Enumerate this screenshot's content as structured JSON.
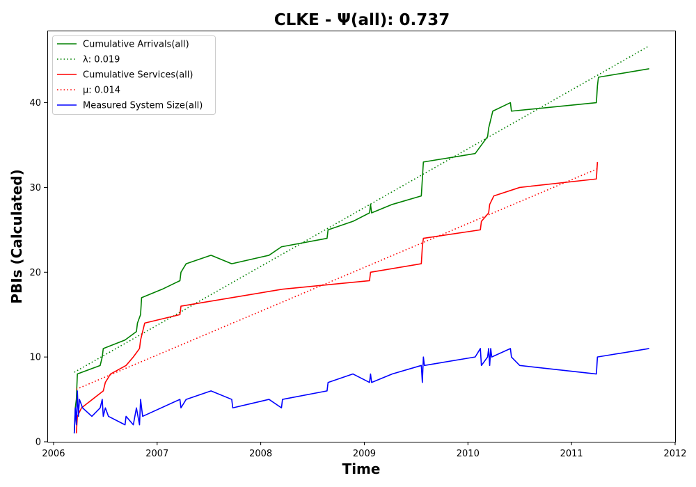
{
  "chart_data": {
    "type": "line",
    "title": "CLKE -  Ψ(all): 0.737",
    "xlabel": "Time",
    "ylabel": "PBIs (Calculated)",
    "xlim": [
      2005.94,
      2012.0
    ],
    "ylim": [
      0,
      48.5
    ],
    "x_ticks": [
      2006,
      2007,
      2008,
      2009,
      2010,
      2011,
      2012
    ],
    "x_tick_labels": [
      "2006",
      "2007",
      "2008",
      "2009",
      "2010",
      "2011",
      "2012"
    ],
    "y_ticks": [
      0,
      10,
      20,
      30,
      40
    ],
    "y_tick_labels": [
      "0",
      "10",
      "20",
      "30",
      "40"
    ],
    "grid": false,
    "legend_position": "top-left",
    "legend": [
      {
        "label": "Cumulative Arrivals(all)",
        "style": "solid",
        "color": "#008000"
      },
      {
        "label": "λ: 0.019",
        "style": "dotted",
        "color": "#008000"
      },
      {
        "label": "Cumulative Services(all)",
        "style": "solid",
        "color": "#ff0000"
      },
      {
        "label": "μ: 0.014",
        "style": "dotted",
        "color": "#ff0000"
      },
      {
        "label": "Measured System Size(all)",
        "style": "solid",
        "color": "#0000ff"
      }
    ],
    "series": [
      {
        "name": "Cumulative Arrivals(all)",
        "style": "solid",
        "color": "#008000",
        "points": [
          [
            2006.2,
            1
          ],
          [
            2006.21,
            4
          ],
          [
            2006.22,
            5
          ],
          [
            2006.23,
            8
          ],
          [
            2006.45,
            9
          ],
          [
            2006.47,
            10
          ],
          [
            2006.48,
            11
          ],
          [
            2006.69,
            12
          ],
          [
            2006.8,
            13
          ],
          [
            2006.81,
            14
          ],
          [
            2006.84,
            15
          ],
          [
            2006.85,
            17
          ],
          [
            2007.05,
            18
          ],
          [
            2007.22,
            19
          ],
          [
            2007.23,
            20
          ],
          [
            2007.28,
            21
          ],
          [
            2007.52,
            22
          ],
          [
            2007.72,
            21
          ],
          [
            2008.08,
            22
          ],
          [
            2008.2,
            23
          ],
          [
            2008.64,
            24
          ],
          [
            2008.65,
            25
          ],
          [
            2008.89,
            26
          ],
          [
            2009.05,
            27
          ],
          [
            2009.06,
            28
          ],
          [
            2009.07,
            27
          ],
          [
            2009.27,
            28
          ],
          [
            2009.55,
            29
          ],
          [
            2009.56,
            31
          ],
          [
            2009.57,
            33
          ],
          [
            2010.07,
            34
          ],
          [
            2010.19,
            36
          ],
          [
            2010.2,
            37
          ],
          [
            2010.24,
            39
          ],
          [
            2010.41,
            40
          ],
          [
            2010.42,
            39
          ],
          [
            2011.24,
            40
          ],
          [
            2011.25,
            42
          ],
          [
            2011.26,
            43
          ],
          [
            2011.75,
            44
          ]
        ]
      },
      {
        "name": "λ: 0.019",
        "style": "dotted",
        "color": "#008000",
        "points": [
          [
            2006.2,
            8.2
          ],
          [
            2011.75,
            46.7
          ]
        ]
      },
      {
        "name": "Cumulative Services(all)",
        "style": "solid",
        "color": "#ff0000",
        "points": [
          [
            2006.22,
            1
          ],
          [
            2006.23,
            3
          ],
          [
            2006.27,
            4
          ],
          [
            2006.48,
            6
          ],
          [
            2006.5,
            7
          ],
          [
            2006.55,
            8
          ],
          [
            2006.7,
            9
          ],
          [
            2006.77,
            10
          ],
          [
            2006.83,
            11
          ],
          [
            2006.84,
            12
          ],
          [
            2006.86,
            13
          ],
          [
            2006.88,
            14
          ],
          [
            2007.22,
            15
          ],
          [
            2007.23,
            16
          ],
          [
            2008.21,
            18
          ],
          [
            2009.05,
            19
          ],
          [
            2009.06,
            20
          ],
          [
            2009.55,
            21
          ],
          [
            2009.56,
            23
          ],
          [
            2009.57,
            24
          ],
          [
            2010.12,
            25
          ],
          [
            2010.13,
            26
          ],
          [
            2010.2,
            27
          ],
          [
            2010.21,
            28
          ],
          [
            2010.25,
            29
          ],
          [
            2010.5,
            30
          ],
          [
            2011.24,
            31
          ],
          [
            2011.25,
            33
          ]
        ]
      },
      {
        "name": "μ: 0.014",
        "style": "dotted",
        "color": "#ff0000",
        "points": [
          [
            2006.22,
            6.2
          ],
          [
            2011.25,
            32.2
          ]
        ]
      },
      {
        "name": "Measured System Size(all)",
        "style": "solid",
        "color": "#0000ff",
        "points": [
          [
            2006.2,
            1
          ],
          [
            2006.21,
            4
          ],
          [
            2006.22,
            2
          ],
          [
            2006.23,
            6
          ],
          [
            2006.24,
            3
          ],
          [
            2006.25,
            5
          ],
          [
            2006.28,
            4
          ],
          [
            2006.37,
            3
          ],
          [
            2006.45,
            4
          ],
          [
            2006.47,
            5
          ],
          [
            2006.48,
            3
          ],
          [
            2006.5,
            4
          ],
          [
            2006.53,
            3
          ],
          [
            2006.69,
            2
          ],
          [
            2006.7,
            3
          ],
          [
            2006.77,
            2
          ],
          [
            2006.8,
            4
          ],
          [
            2006.83,
            2
          ],
          [
            2006.84,
            5
          ],
          [
            2006.86,
            3
          ],
          [
            2007.22,
            5
          ],
          [
            2007.23,
            4
          ],
          [
            2007.28,
            5
          ],
          [
            2007.52,
            6
          ],
          [
            2007.72,
            5
          ],
          [
            2007.73,
            4
          ],
          [
            2008.08,
            5
          ],
          [
            2008.2,
            4
          ],
          [
            2008.21,
            5
          ],
          [
            2008.64,
            6
          ],
          [
            2008.65,
            7
          ],
          [
            2008.89,
            8
          ],
          [
            2009.05,
            7
          ],
          [
            2009.06,
            8
          ],
          [
            2009.07,
            7
          ],
          [
            2009.27,
            8
          ],
          [
            2009.55,
            9
          ],
          [
            2009.56,
            7
          ],
          [
            2009.57,
            10
          ],
          [
            2009.58,
            9
          ],
          [
            2010.07,
            10
          ],
          [
            2010.12,
            11
          ],
          [
            2010.13,
            9
          ],
          [
            2010.19,
            10
          ],
          [
            2010.2,
            11
          ],
          [
            2010.21,
            9
          ],
          [
            2010.22,
            11
          ],
          [
            2010.23,
            10
          ],
          [
            2010.41,
            11
          ],
          [
            2010.42,
            10
          ],
          [
            2010.5,
            9
          ],
          [
            2011.24,
            8
          ],
          [
            2011.25,
            10
          ],
          [
            2011.75,
            11
          ]
        ]
      }
    ]
  }
}
